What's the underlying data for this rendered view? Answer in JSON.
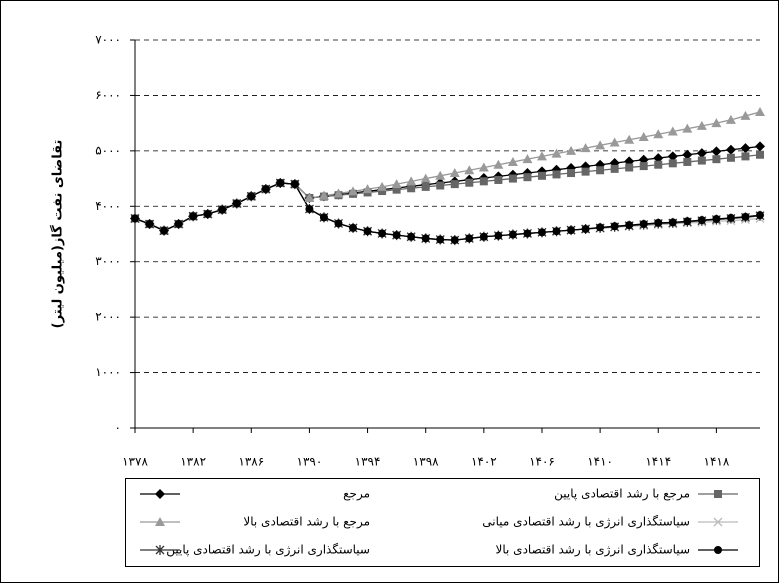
{
  "chart_data": {
    "type": "line",
    "y_label": "تقاضای نفت گاز(میلیون لیتر)",
    "x": [
      1378,
      1379,
      1380,
      1381,
      1382,
      1383,
      1384,
      1385,
      1386,
      1387,
      1388,
      1389,
      1390,
      1391,
      1392,
      1393,
      1394,
      1395,
      1396,
      1397,
      1398,
      1399,
      1400,
      1401,
      1402,
      1403,
      1404,
      1405,
      1406,
      1407,
      1408,
      1409,
      1410,
      1411,
      1412,
      1413,
      1414,
      1415,
      1416,
      1417,
      1418,
      1419,
      1420,
      1421
    ],
    "xlim": [
      1378,
      1421
    ],
    "xticks": [
      {
        "value": 1378,
        "label": "۱۳۷۸"
      },
      {
        "value": 1382,
        "label": "۱۳۸۲"
      },
      {
        "value": 1386,
        "label": "۱۳۸۶"
      },
      {
        "value": 1390,
        "label": "۱۳۹۰"
      },
      {
        "value": 1394,
        "label": "۱۳۹۴"
      },
      {
        "value": 1398,
        "label": "۱۳۹۸"
      },
      {
        "value": 1402,
        "label": "۱۴۰۲"
      },
      {
        "value": 1406,
        "label": "۱۴۰۶"
      },
      {
        "value": 1410,
        "label": "۱۴۱۰"
      },
      {
        "value": 1414,
        "label": "۱۴۱۴"
      },
      {
        "value": 1418,
        "label": "۱۴۱۸"
      }
    ],
    "ylim": [
      0,
      7000
    ],
    "yticks": [
      {
        "value": 0,
        "label": "۰"
      },
      {
        "value": 1000,
        "label": "۱۰۰۰"
      },
      {
        "value": 2000,
        "label": "۲۰۰۰"
      },
      {
        "value": 3000,
        "label": "۳۰۰۰"
      },
      {
        "value": 4000,
        "label": "۴۰۰۰"
      },
      {
        "value": 5000,
        "label": "۵۰۰۰"
      },
      {
        "value": 6000,
        "label": "۶۰۰۰"
      },
      {
        "value": 7000,
        "label": "۷۰۰۰"
      }
    ],
    "grid": true,
    "legend": "bottom",
    "series": [
      {
        "name": "مرجع",
        "color": "#000000",
        "marker": "diamond",
        "values": [
          3780,
          3680,
          3560,
          3680,
          3820,
          3860,
          3940,
          4050,
          4180,
          4310,
          4420,
          4400,
          4150,
          4180,
          4210,
          4240,
          4270,
          4300,
          4330,
          4360,
          4390,
          4420,
          4450,
          4480,
          4510,
          4540,
          4570,
          4600,
          4630,
          4660,
          4690,
          4720,
          4750,
          4780,
          4810,
          4840,
          4870,
          4900,
          4930,
          4960,
          4990,
          5020,
          5050,
          5080
        ]
      },
      {
        "name": "مرجع با رشد اقتصادی پایین",
        "color": "#666666",
        "marker": "square",
        "values": [
          3780,
          3680,
          3560,
          3680,
          3820,
          3860,
          3940,
          4050,
          4180,
          4310,
          4420,
          4400,
          4150,
          4175,
          4200,
          4225,
          4250,
          4275,
          4300,
          4325,
          4350,
          4375,
          4400,
          4425,
          4450,
          4475,
          4500,
          4525,
          4550,
          4575,
          4600,
          4625,
          4650,
          4675,
          4700,
          4725,
          4750,
          4775,
          4800,
          4825,
          4850,
          4875,
          4900,
          4930
        ]
      },
      {
        "name": "مرجع با رشد اقتصادی بالا",
        "color": "#999999",
        "marker": "triangle",
        "values": [
          3780,
          3680,
          3560,
          3680,
          3820,
          3860,
          3940,
          4050,
          4180,
          4310,
          4420,
          4400,
          4150,
          4190,
          4230,
          4270,
          4310,
          4350,
          4400,
          4450,
          4500,
          4550,
          4600,
          4650,
          4700,
          4750,
          4800,
          4850,
          4900,
          4950,
          5000,
          5050,
          5100,
          5150,
          5200,
          5250,
          5300,
          5350,
          5400,
          5450,
          5500,
          5560,
          5630,
          5700
        ]
      },
      {
        "name": "سیاستگذاری انرژی با رشد اقتصادی میانی",
        "color": "#bbbbbb",
        "marker": "x",
        "values": [
          3780,
          3680,
          3560,
          3680,
          3820,
          3860,
          3940,
          4050,
          4180,
          4310,
          4420,
          4400,
          3950,
          3800,
          3690,
          3610,
          3550,
          3510,
          3480,
          3450,
          3420,
          3400,
          3390,
          3420,
          3450,
          3470,
          3490,
          3510,
          3530,
          3550,
          3570,
          3590,
          3600,
          3620,
          3640,
          3650,
          3670,
          3680,
          3700,
          3710,
          3730,
          3740,
          3760,
          3780
        ]
      },
      {
        "name": "سیاستگذاری انرژی با رشد اقتصادی پایین",
        "color": "#333333",
        "marker": "star",
        "values": [
          3780,
          3680,
          3560,
          3680,
          3820,
          3860,
          3940,
          4050,
          4180,
          4310,
          4420,
          4400,
          3950,
          3800,
          3690,
          3610,
          3550,
          3510,
          3480,
          3450,
          3420,
          3400,
          3390,
          3420,
          3450,
          3470,
          3490,
          3510,
          3530,
          3550,
          3570,
          3590,
          3610,
          3630,
          3650,
          3670,
          3690,
          3700,
          3720,
          3740,
          3760,
          3780,
          3800,
          3830
        ]
      },
      {
        "name": "سیاستگذاری انرژی با رشد اقتصادی بالا",
        "color": "#000000",
        "marker": "circle",
        "values": [
          3780,
          3680,
          3560,
          3680,
          3820,
          3860,
          3940,
          4050,
          4180,
          4310,
          4420,
          4400,
          3950,
          3800,
          3690,
          3610,
          3550,
          3510,
          3480,
          3450,
          3420,
          3400,
          3390,
          3420,
          3450,
          3470,
          3490,
          3510,
          3530,
          3550,
          3570,
          3590,
          3620,
          3640,
          3660,
          3680,
          3700,
          3710,
          3730,
          3750,
          3770,
          3790,
          3810,
          3840
        ]
      }
    ]
  }
}
